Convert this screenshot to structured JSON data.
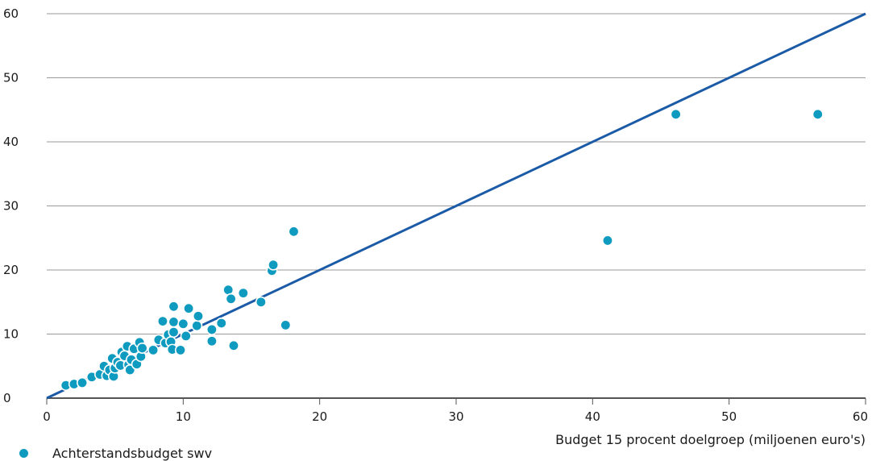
{
  "colors": {
    "point": "#0f9bbf",
    "line": "#1a5aa6",
    "grid": "#9a9a9a",
    "axis": "#555555"
  },
  "chart_data": {
    "type": "scatter",
    "title": "",
    "xlabel": "Budget 15 procent doelgroep (miljoenen euro's)",
    "ylabel": "",
    "xlim": [
      0,
      60
    ],
    "ylim": [
      0,
      60
    ],
    "xticks": [
      0,
      10,
      20,
      30,
      40,
      50,
      60
    ],
    "yticks": [
      0,
      10,
      20,
      30,
      40,
      50,
      60
    ],
    "grid": "horizontal",
    "legend_position": "bottom-left",
    "reference_line": {
      "x": [
        0,
        60
      ],
      "y": [
        0,
        60
      ]
    },
    "series": [
      {
        "name": "Achterstandsbudget swv",
        "points": [
          [
            1.4,
            2.0
          ],
          [
            2.0,
            2.2
          ],
          [
            2.6,
            2.4
          ],
          [
            3.3,
            3.3
          ],
          [
            3.9,
            3.7
          ],
          [
            4.2,
            5.0
          ],
          [
            4.4,
            3.5
          ],
          [
            4.6,
            4.4
          ],
          [
            4.8,
            6.2
          ],
          [
            4.9,
            3.4
          ],
          [
            5.0,
            4.7
          ],
          [
            5.2,
            5.6
          ],
          [
            5.4,
            5.1
          ],
          [
            5.5,
            7.2
          ],
          [
            5.7,
            6.6
          ],
          [
            5.9,
            8.1
          ],
          [
            6.0,
            5.2
          ],
          [
            6.1,
            4.4
          ],
          [
            6.2,
            6.0
          ],
          [
            6.4,
            7.7
          ],
          [
            6.6,
            5.3
          ],
          [
            6.8,
            8.7
          ],
          [
            6.9,
            6.5
          ],
          [
            7.0,
            7.8
          ],
          [
            7.8,
            7.5
          ],
          [
            8.2,
            9.1
          ],
          [
            8.5,
            12.0
          ],
          [
            8.7,
            8.6
          ],
          [
            8.9,
            9.9
          ],
          [
            9.1,
            8.8
          ],
          [
            9.2,
            7.6
          ],
          [
            9.3,
            10.3
          ],
          [
            9.3,
            11.9
          ],
          [
            9.3,
            14.3
          ],
          [
            9.8,
            7.5
          ],
          [
            10.0,
            11.6
          ],
          [
            10.2,
            9.7
          ],
          [
            10.4,
            14.0
          ],
          [
            11.0,
            11.3
          ],
          [
            11.1,
            12.8
          ],
          [
            12.1,
            8.9
          ],
          [
            12.1,
            10.7
          ],
          [
            12.8,
            11.7
          ],
          [
            13.3,
            16.9
          ],
          [
            13.5,
            15.5
          ],
          [
            13.7,
            8.2
          ],
          [
            14.4,
            16.4
          ],
          [
            15.7,
            15.0
          ],
          [
            16.5,
            19.9
          ],
          [
            16.6,
            20.8
          ],
          [
            17.5,
            11.4
          ],
          [
            18.1,
            26.0
          ],
          [
            41.1,
            24.6
          ],
          [
            46.1,
            44.3
          ],
          [
            56.5,
            44.3
          ]
        ]
      }
    ]
  }
}
